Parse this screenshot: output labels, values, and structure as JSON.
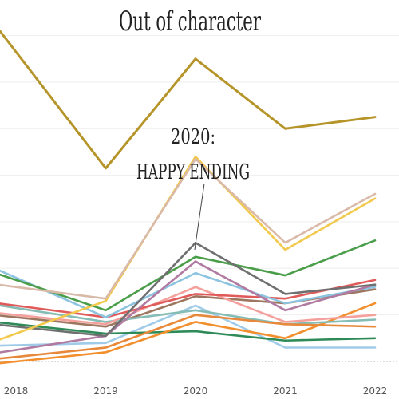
{
  "chart_data": {
    "type": "line",
    "title": "Out of character",
    "x": [
      "2018",
      "2019",
      "2020",
      "2021",
      "2022"
    ],
    "ylim": [
      0,
      14.5
    ],
    "grid": true,
    "legend": "none",
    "annotations": [
      {
        "text_lines": [
          "2020:",
          "HAPPY ENDING"
        ],
        "points_to_series": 2,
        "x": "2020"
      }
    ],
    "series": [
      {
        "color": "#b5952a",
        "values": [
          13.3,
          8.3,
          13.0,
          10.0,
          10.5
        ]
      },
      {
        "color": "#d9b9a8",
        "values": [
          3.2,
          2.7,
          8.7,
          5.1,
          7.2
        ]
      },
      {
        "color": "#f2c94c",
        "values": [
          1.2,
          2.6,
          8.8,
          4.8,
          7.0
        ]
      },
      {
        "color": "#6f6f6f",
        "values": [
          1.5,
          1.1,
          5.1,
          2.9,
          3.3
        ]
      },
      {
        "color": "#4a9e4a",
        "values": [
          3.5,
          2.2,
          4.5,
          3.7,
          5.2
        ]
      },
      {
        "color": "#b07aa1",
        "values": [
          0.5,
          1.1,
          4.3,
          2.2,
          3.3
        ]
      },
      {
        "color": "#8cc4e0",
        "values": [
          3.6,
          1.9,
          3.8,
          2.5,
          3.2
        ]
      },
      {
        "color": "#e05a5a",
        "values": [
          2.4,
          1.9,
          2.9,
          2.7,
          3.5
        ]
      },
      {
        "color": "#f4a09c",
        "values": [
          2.0,
          1.6,
          3.2,
          1.7,
          2.0
        ]
      },
      {
        "color": "#e8883a",
        "values": [
          0.2,
          0.6,
          2.0,
          1.6,
          1.5
        ]
      },
      {
        "color": "#86bcb6",
        "values": [
          2.3,
          1.7,
          2.2,
          1.6,
          1.8
        ]
      },
      {
        "color": "#9d7660",
        "values": [
          1.9,
          1.5,
          2.8,
          2.5,
          3.1
        ]
      },
      {
        "color": "#f28e2b",
        "values": [
          0.0,
          0.4,
          1.7,
          1.0,
          2.5
        ]
      },
      {
        "color": "#2e8b57",
        "values": [
          1.6,
          1.2,
          1.3,
          0.9,
          1.0
        ]
      },
      {
        "color": "#a0cbe8",
        "values": [
          0.7,
          0.8,
          2.4,
          0.6,
          0.6
        ]
      }
    ]
  }
}
